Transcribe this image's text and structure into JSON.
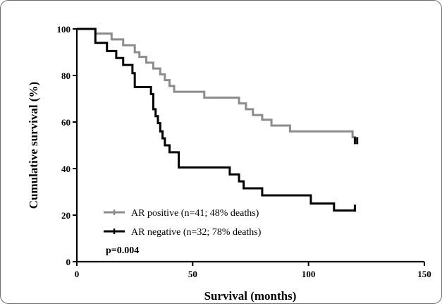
{
  "chart_data": {
    "type": "line",
    "subtype": "kaplan-meier step",
    "title": "",
    "xlabel": "Survival (months)",
    "ylabel": "Cumulative survival (%)",
    "xlim": [
      0,
      150
    ],
    "ylim": [
      0,
      100
    ],
    "xticks": [
      0,
      50,
      100,
      150
    ],
    "yticks": [
      0,
      20,
      40,
      60,
      80,
      100
    ],
    "grid": false,
    "legend_position": "bottom-left",
    "annotation": "p=0.004",
    "series": [
      {
        "name": "AR positive (n=41; 48% deaths)",
        "color": "#8c8c8c",
        "censor_x": [
          120,
          121
        ],
        "censor_y": [
          52,
          52
        ],
        "x": [
          0,
          8,
          15,
          20,
          25,
          27,
          30,
          33,
          36,
          38,
          40,
          42,
          43,
          45,
          55,
          70,
          73,
          76,
          80,
          84,
          92,
          119,
          120
        ],
        "y": [
          100,
          98,
          95.5,
          93,
          90,
          88,
          85.5,
          83,
          80.5,
          78,
          75.5,
          73,
          73,
          73,
          70.5,
          68,
          65.5,
          63,
          61,
          58.5,
          56,
          53.5,
          52
        ]
      },
      {
        "name": "AR negative (n=32; 78% deaths)",
        "color": "#000000",
        "censor_x": [
          120
        ],
        "censor_y": [
          23
        ],
        "x": [
          0,
          8,
          13,
          17,
          20,
          24,
          25,
          32,
          33,
          34,
          35,
          36,
          37,
          38,
          40,
          44,
          52,
          66,
          70,
          72,
          80,
          101,
          111,
          120
        ],
        "y": [
          100,
          94,
          90.5,
          87.5,
          84.5,
          81,
          75,
          72,
          65.5,
          62.5,
          59.5,
          56,
          53,
          50,
          47,
          40.5,
          40.5,
          37.5,
          34.5,
          31.5,
          28.5,
          25,
          22,
          23
        ]
      }
    ]
  }
}
